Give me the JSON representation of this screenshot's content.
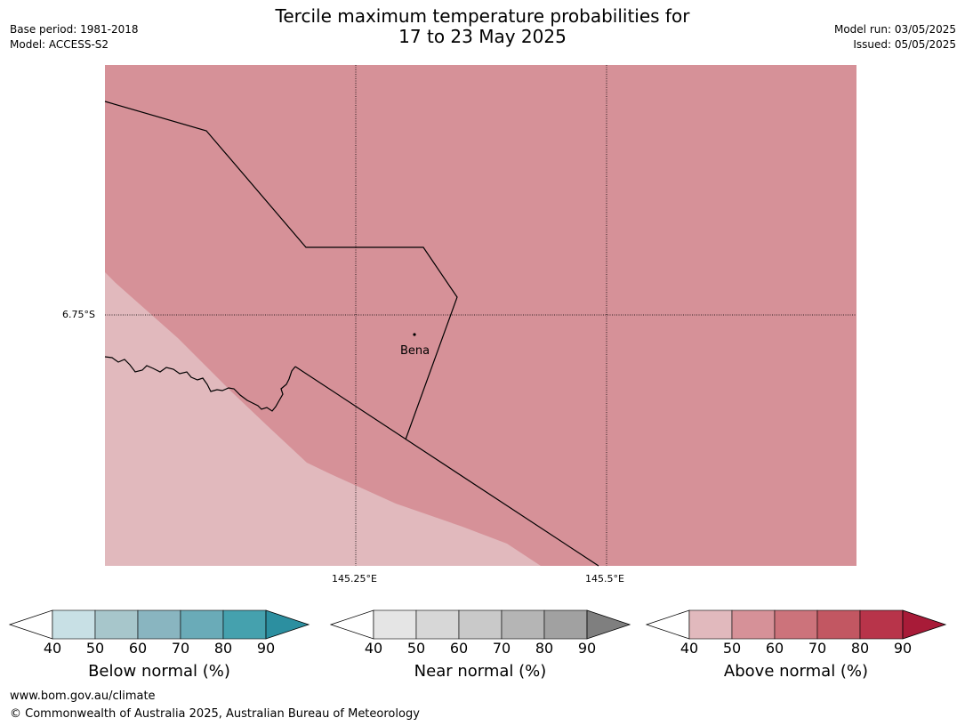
{
  "header": {
    "title_line1": "Tercile maximum temperature probabilities for",
    "title_line2": "17 to 23 May 2025",
    "base_period": "Base period: 1981-2018",
    "model": "Model: ACCESS-S2",
    "model_run": "Model run: 03/05/2025",
    "issued": "Issued: 05/05/2025"
  },
  "map": {
    "lat_label": "6.75°S",
    "lon_labels": [
      "145.25°E",
      "145.5°E"
    ],
    "place": "Bena",
    "fill_colors": {
      "above_50_60": "#d69198",
      "above_40_50": "#e1b9bd"
    }
  },
  "colorbars": [
    {
      "label": "Below normal (%)",
      "ticks": [
        "40",
        "50",
        "60",
        "70",
        "80",
        "90"
      ],
      "colors": [
        "#ffffff",
        "#c8e0e5",
        "#a7c6cb",
        "#89b5c0",
        "#6aabb8",
        "#45a1ae",
        "#2c8fa0"
      ]
    },
    {
      "label": "Near normal (%)",
      "ticks": [
        "40",
        "50",
        "60",
        "70",
        "80",
        "90"
      ],
      "colors": [
        "#ffffff",
        "#e5e5e5",
        "#d7d7d7",
        "#c9c9c9",
        "#b5b5b5",
        "#a1a1a1",
        "#7f7f7f"
      ]
    },
    {
      "label": "Above normal (%)",
      "ticks": [
        "40",
        "50",
        "60",
        "70",
        "80",
        "90"
      ],
      "colors": [
        "#ffffff",
        "#e1b9bd",
        "#d69198",
        "#cc737b",
        "#c25762",
        "#b8344a",
        "#a81b38"
      ]
    }
  ],
  "footer": {
    "url": "www.bom.gov.au/climate",
    "copyright": "© Commonwealth of Australia 2025, Australian Bureau of Meteorology"
  }
}
